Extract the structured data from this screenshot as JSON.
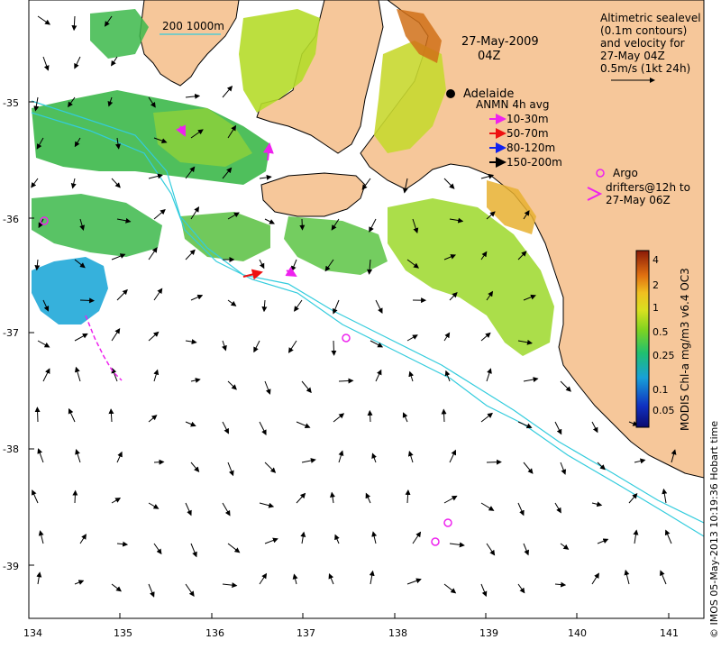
{
  "map": {
    "date_title": "27-May-2009",
    "time_title": "04Z",
    "scale_bar_label": "200  1000m",
    "city_label": "Adelaide",
    "x_ticks": [
      "134",
      "135",
      "136",
      "137",
      "138",
      "139",
      "140",
      "141"
    ],
    "y_ticks": [
      "-35",
      "-36",
      "-37",
      "-38",
      "-39"
    ],
    "credit": "© IMOS 05-May-2013 10:19:36 Hobart time",
    "colors": {
      "land": "#f6c79a",
      "ocean": "#ffffff",
      "isobath": "#33ccdd",
      "argo": "#ee22ee"
    }
  },
  "altimetry_legend": {
    "lines": [
      "Altimetric sealevel",
      "(0.1m contours)",
      "and velocity for",
      "27-May 04Z",
      "0.5m/s (1kt 24h)"
    ]
  },
  "anmn_legend": {
    "title": "ANMN 4h avg",
    "items": [
      {
        "label": "10-30m",
        "color": "#ee22ee"
      },
      {
        "label": "50-70m",
        "color": "#ee1111"
      },
      {
        "label": "80-120m",
        "color": "#1122ee"
      },
      {
        "label": "150-200m",
        "color": "#000000"
      }
    ]
  },
  "argo_legend": {
    "lines": [
      "Argo",
      "drifters@12h to",
      "27-May 06Z"
    ]
  },
  "colorbar": {
    "label": "MODIS Chl-a mg/m3 v6.4 OC3",
    "ticks": [
      "4",
      "2",
      "1",
      "0.5",
      "0.25",
      "0.1",
      "0.05"
    ]
  }
}
